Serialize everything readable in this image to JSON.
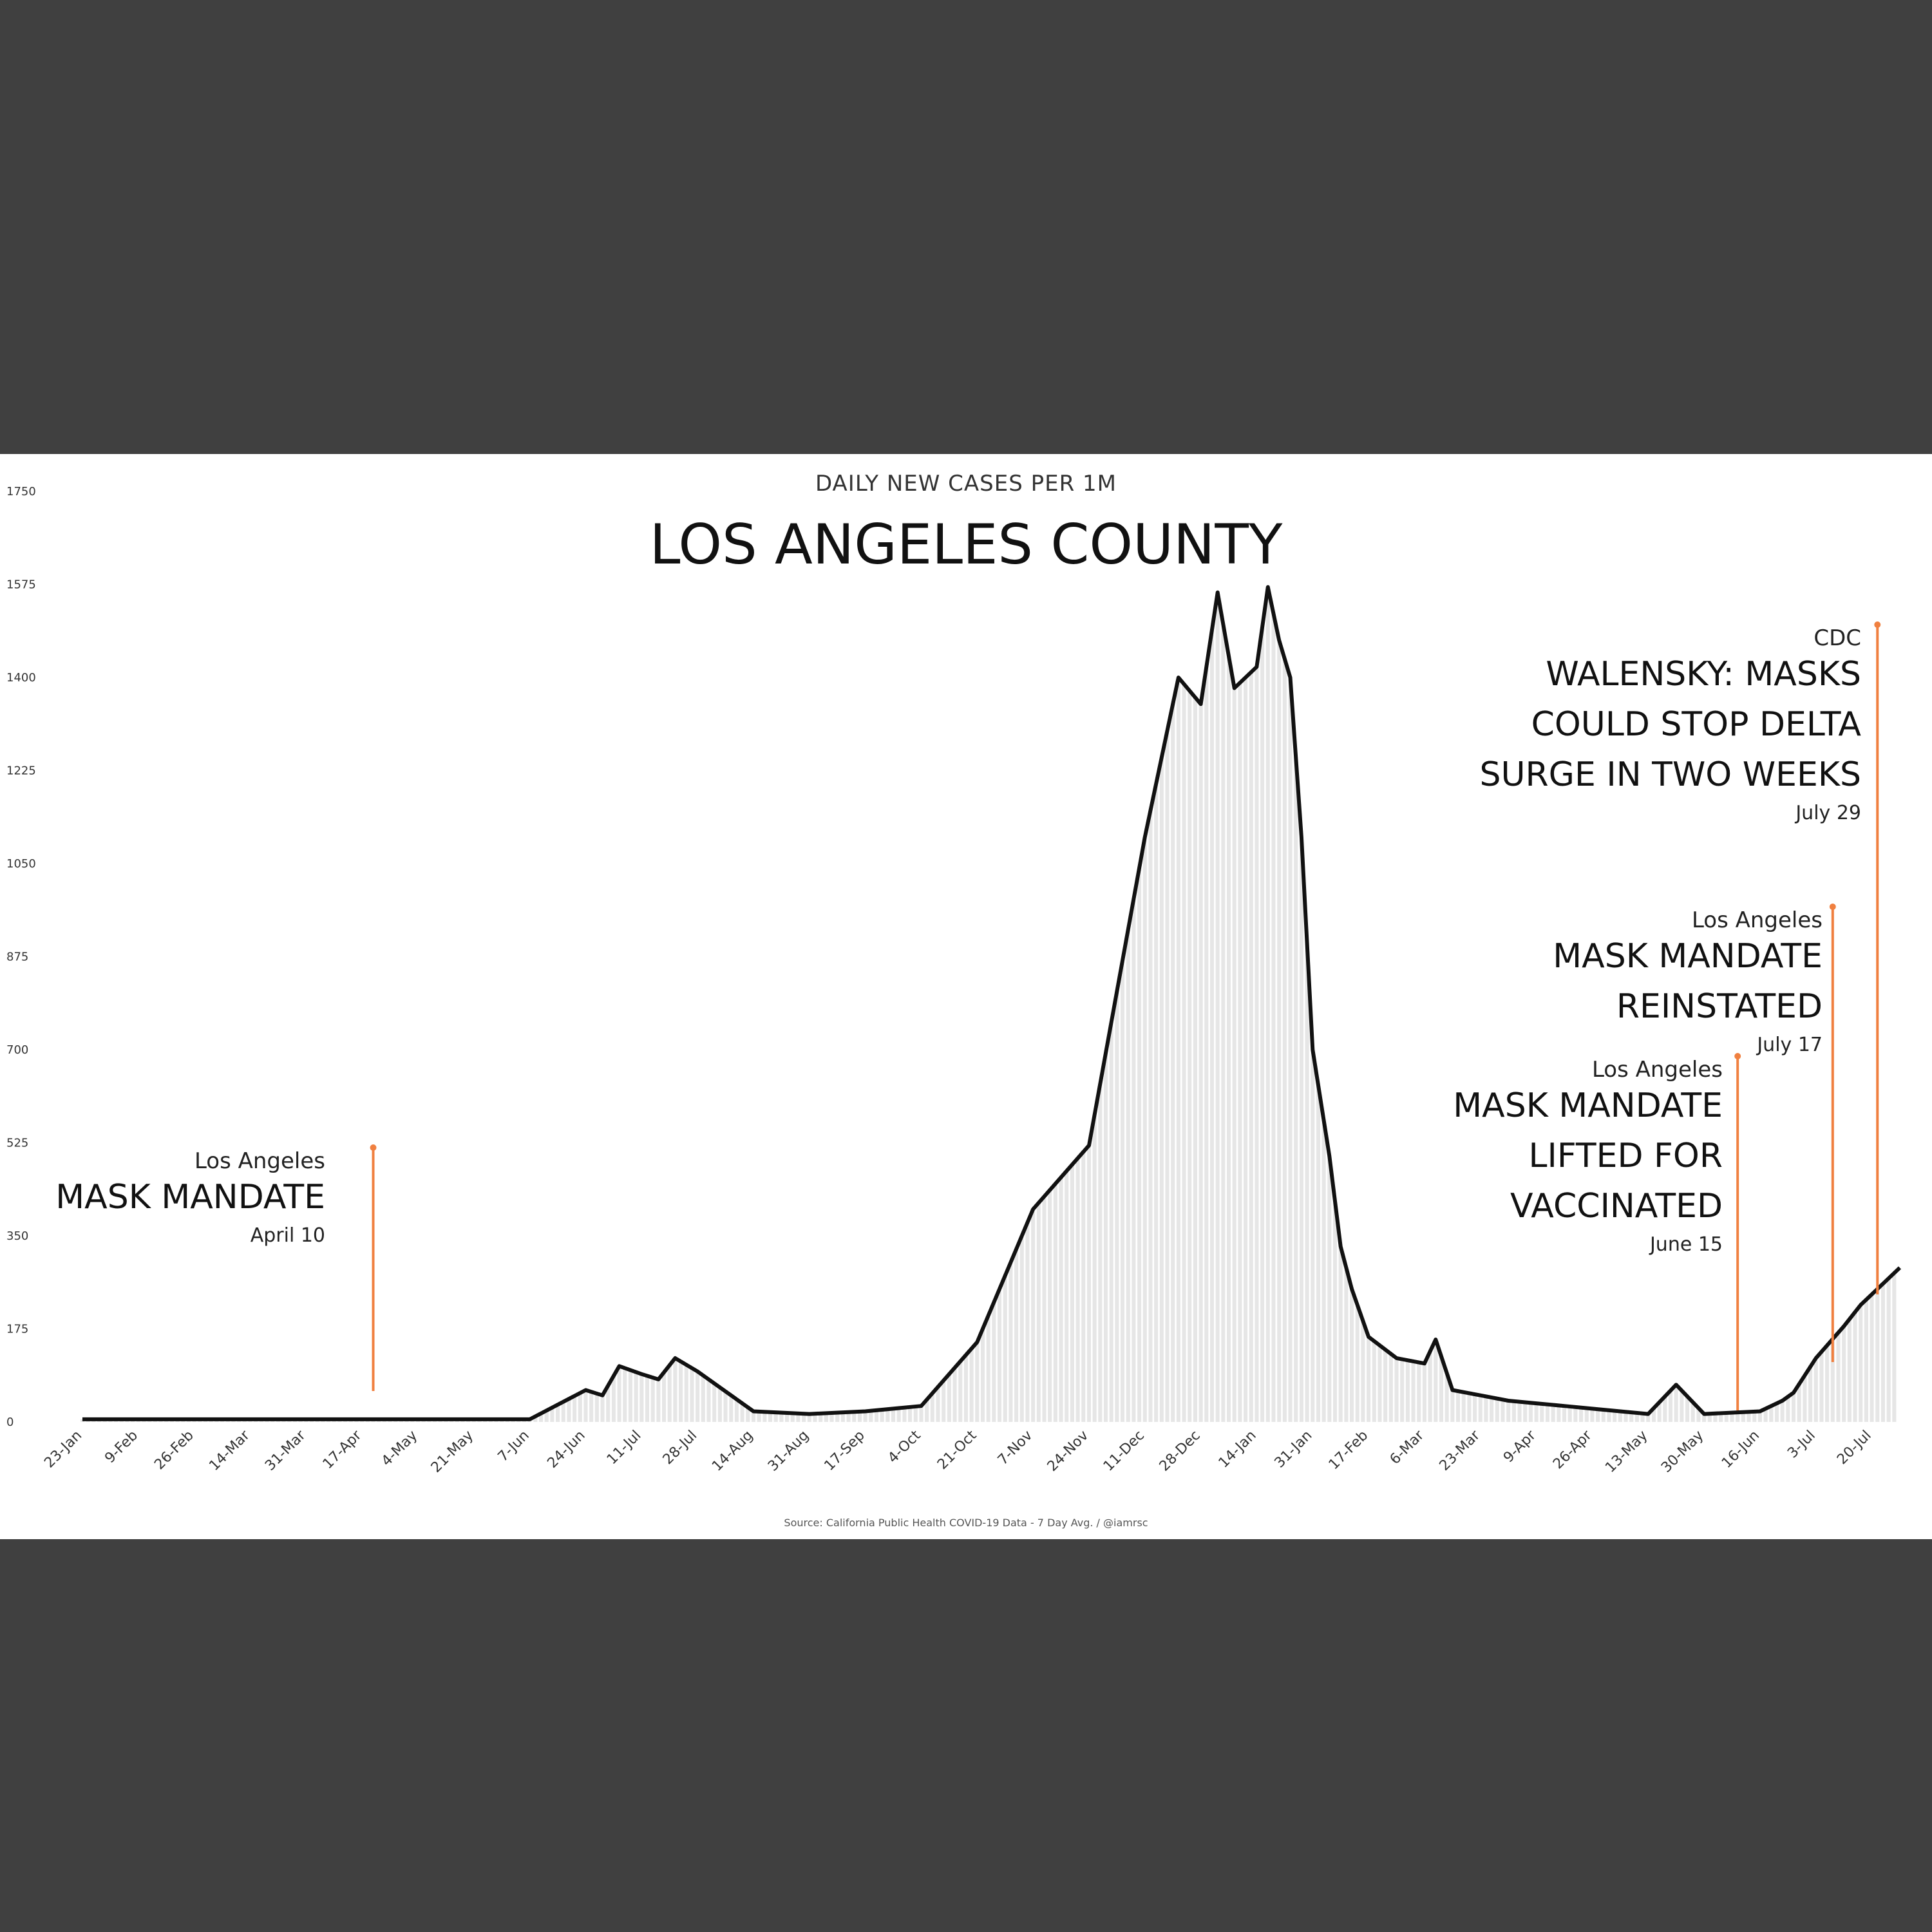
{
  "chart_data": {
    "type": "line",
    "subtitle": "DAILY NEW CASES PER 1M",
    "title": "LOS ANGELES COUNTY",
    "source": "Source: California Public Health COVID-19 Data - 7 Day Avg. / @iamrsc",
    "ylim": [
      0,
      1750
    ],
    "y_ticks": [
      "0",
      "175",
      "350",
      "525",
      "700",
      "875",
      "1050",
      "1225",
      "1400",
      "1575",
      "1750"
    ],
    "x_labels": [
      "23-Jan",
      "9-Feb",
      "26-Feb",
      "14-Mar",
      "31-Mar",
      "17-Apr",
      "4-May",
      "21-May",
      "7-Jun",
      "24-Jun",
      "11-Jul",
      "28-Jul",
      "14-Aug",
      "31-Aug",
      "17-Sep",
      "4-Oct",
      "21-Oct",
      "7-Nov",
      "24-Nov",
      "11-Dec",
      "28-Dec",
      "14-Jan",
      "31-Jan",
      "17-Feb",
      "6-Mar",
      "23-Mar",
      "9-Apr",
      "26-Apr",
      "13-May",
      "30-May",
      "16-Jun",
      "3-Jul",
      "20-Jul"
    ],
    "series": [
      {
        "name": "Daily new cases per 1M (7-day avg)",
        "x": [
          0,
          8,
          9,
          9.3,
          9.6,
          10,
          10.3,
          10.6,
          11,
          12,
          13,
          14,
          15,
          16,
          17,
          18,
          19,
          19.6,
          20,
          20.3,
          20.6,
          21,
          21.2,
          21.4,
          21.6,
          21.8,
          22,
          22.3,
          22.5,
          22.7,
          23,
          23.5,
          24,
          24.2,
          24.5,
          25,
          25.5,
          26,
          26.5,
          27,
          27.5,
          28,
          28.5,
          29,
          30,
          30.4,
          30.6,
          31,
          31.5,
          31.8,
          32,
          32.5
        ],
        "values": [
          5,
          5,
          60,
          50,
          105,
          90,
          80,
          120,
          95,
          20,
          15,
          20,
          30,
          150,
          400,
          520,
          1100,
          1400,
          1350,
          1560,
          1380,
          1420,
          1570,
          1470,
          1400,
          1100,
          700,
          500,
          330,
          250,
          160,
          120,
          110,
          155,
          60,
          50,
          40,
          35,
          30,
          25,
          20,
          15,
          70,
          15,
          20,
          40,
          55,
          120,
          180,
          220,
          240,
          290
        ]
      }
    ],
    "annotations": [
      {
        "org": "Los Angeles",
        "lines": [
          "MASK MANDATE"
        ],
        "date": "April 10",
        "x": 5.2
      },
      {
        "org": "Los Angeles",
        "lines": [
          "MASK MANDATE",
          "LIFTED FOR",
          "VACCINATED"
        ],
        "date": "June 15",
        "x": 29.6
      },
      {
        "org": "Los Angeles",
        "lines": [
          "MASK MANDATE",
          "REINSTATED"
        ],
        "date": "July 17",
        "x": 31.3
      },
      {
        "org": "CDC",
        "lines": [
          "WALENSKY: MASKS",
          "COULD STOP DELTA",
          "SURGE IN TWO WEEKS"
        ],
        "date": "July 29",
        "x": 32.1
      }
    ],
    "colors": {
      "line": "#111111",
      "annotation": "#f08040",
      "band": "#404040",
      "plot_bg": "#ffffff",
      "bars": "#e6e6e6"
    }
  }
}
